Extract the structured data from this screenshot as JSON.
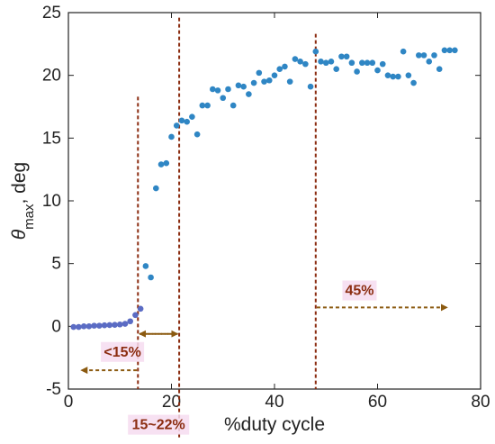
{
  "chart_data": {
    "type": "scatter",
    "xlabel": "%duty cycle",
    "ylabel": "θmax, deg",
    "ylabel_main": "θ",
    "ylabel_sub": "max",
    "ylabel_rest": ", deg",
    "xlim": [
      0,
      80
    ],
    "ylim": [
      -5,
      25
    ],
    "xticks": [
      0,
      20,
      40,
      60,
      80
    ],
    "yticks": [
      -5,
      0,
      5,
      10,
      15,
      20,
      25
    ],
    "grid": false,
    "colors": {
      "early": "#5b6cc4",
      "late": "#2f86c4",
      "annotation": "#8b2c10",
      "label_bg": "#f6dcf0"
    },
    "series": [
      {
        "color": "#5b6cc4",
        "x": [
          1,
          2,
          3,
          4,
          5,
          6,
          7,
          8,
          9,
          10,
          11,
          12,
          13,
          14
        ],
        "y": [
          -0.05,
          -0.05,
          0.0,
          0.0,
          0.05,
          0.05,
          0.08,
          0.1,
          0.12,
          0.15,
          0.2,
          0.4,
          0.9,
          1.4
        ]
      },
      {
        "color": "#2f86c4",
        "x": [
          15,
          16,
          17,
          18,
          19,
          20,
          21,
          22,
          23,
          24,
          25,
          26,
          27,
          28,
          29,
          30,
          31,
          32,
          33,
          34,
          35,
          36,
          37,
          38,
          39,
          40,
          41,
          42,
          43,
          44,
          45,
          46,
          47,
          48,
          49,
          50,
          51,
          52,
          53,
          54,
          55,
          56,
          57,
          58,
          59,
          60,
          61,
          62,
          63,
          64,
          65,
          66,
          67,
          68,
          69,
          70,
          71,
          72,
          73,
          74,
          75
        ],
        "y": [
          4.8,
          3.9,
          11.0,
          12.9,
          13.0,
          15.1,
          16.0,
          16.4,
          16.3,
          16.7,
          15.3,
          17.6,
          17.6,
          18.9,
          18.8,
          18.2,
          18.9,
          17.6,
          19.2,
          19.1,
          18.5,
          19.4,
          20.2,
          19.5,
          19.6,
          20.0,
          20.5,
          20.7,
          19.5,
          21.3,
          21.1,
          20.9,
          19.1,
          21.9,
          21.1,
          21.0,
          21.1,
          20.5,
          21.5,
          21.5,
          21.0,
          20.3,
          21.0,
          21.0,
          21.0,
          20.4,
          20.9,
          20.0,
          19.9,
          19.9,
          21.9,
          20.0,
          19.4,
          21.6,
          21.6,
          21.1,
          21.6,
          20.5,
          22.0,
          22.0,
          22.0
        ]
      }
    ],
    "annotations": {
      "vlines": [
        13.5,
        21.5,
        48
      ],
      "labels": [
        {
          "text": "<15%",
          "x": 10.5,
          "y": -2.4,
          "arrow_from": 13.3,
          "arrow_to": 2.5,
          "arrow_y": -3.5
        },
        {
          "text": "15~22%",
          "x": 17.5,
          "y": -8.2,
          "arrow_from": 13.8,
          "arrow_to": 21.2,
          "arrow_y": -0.6
        },
        {
          "text": "45%",
          "x": 56.5,
          "y": 2.5,
          "arrow_from": 48.2,
          "arrow_to": 73.5,
          "arrow_y": 1.5
        }
      ]
    }
  }
}
